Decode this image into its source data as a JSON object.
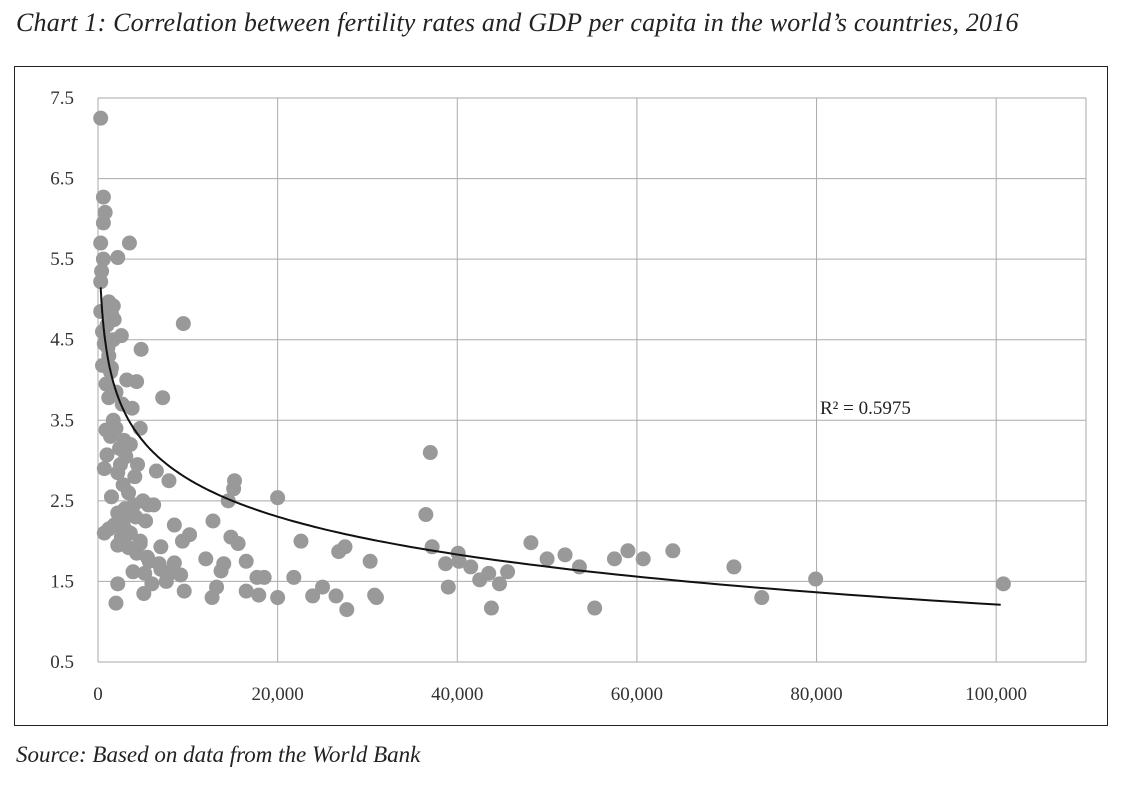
{
  "title": "Chart 1: Correlation between fertility rates and GDP per capita in the world’s countries, 2016",
  "source": "Source: Based on data from the World Bank",
  "colors": {
    "point": "#999999",
    "trend": "#111111",
    "grid": "#aaaaaa"
  },
  "chart_data": {
    "type": "scatter",
    "title": "Chart 1: Correlation between fertility rates and GDP per capita in the world’s countries, 2016",
    "xlabel": "",
    "ylabel": "",
    "xlim": [
      0,
      110000
    ],
    "ylim": [
      0.5,
      7.5
    ],
    "xticks": [
      0,
      20000,
      40000,
      60000,
      80000,
      100000
    ],
    "xtick_labels": [
      "0",
      "20,000",
      "40,000",
      "60,000",
      "80,000",
      "100,000"
    ],
    "yticks": [
      0.5,
      1.5,
      2.5,
      3.5,
      4.5,
      5.5,
      6.5,
      7.5
    ],
    "ytick_labels": [
      "0.5",
      "1.5",
      "2.5",
      "3.5",
      "4.5",
      "5.5",
      "6.5",
      "7.5"
    ],
    "grid": true,
    "trendline": {
      "type": "logarithmic",
      "annotation": "R² = 0.5975",
      "x_range": [
        300,
        100500
      ],
      "y_at_start": 5.15,
      "y_at_end": 1.21
    },
    "points": [
      [
        300,
        7.25
      ],
      [
        600,
        6.27
      ],
      [
        800,
        6.08
      ],
      [
        600,
        5.95
      ],
      [
        300,
        5.7
      ],
      [
        3500,
        5.7
      ],
      [
        2200,
        5.52
      ],
      [
        600,
        5.5
      ],
      [
        400,
        5.35
      ],
      [
        300,
        5.22
      ],
      [
        1200,
        4.97
      ],
      [
        1700,
        4.92
      ],
      [
        300,
        4.85
      ],
      [
        1500,
        4.82
      ],
      [
        1800,
        4.75
      ],
      [
        1000,
        4.68
      ],
      [
        9500,
        4.7
      ],
      [
        500,
        4.6
      ],
      [
        2600,
        4.55
      ],
      [
        1700,
        4.5
      ],
      [
        700,
        4.45
      ],
      [
        4800,
        4.38
      ],
      [
        1200,
        4.3
      ],
      [
        500,
        4.18
      ],
      [
        1400,
        4.1
      ],
      [
        3200,
        4.0
      ],
      [
        4300,
        3.98
      ],
      [
        900,
        3.95
      ],
      [
        2000,
        3.85
      ],
      [
        1200,
        3.78
      ],
      [
        7200,
        3.78
      ],
      [
        2700,
        3.7
      ],
      [
        3800,
        3.65
      ],
      [
        1700,
        3.5
      ],
      [
        900,
        3.38
      ],
      [
        4700,
        3.4
      ],
      [
        2900,
        3.25
      ],
      [
        3600,
        3.2
      ],
      [
        2400,
        3.15
      ],
      [
        1000,
        3.07
      ],
      [
        3100,
        3.05
      ],
      [
        4400,
        2.95
      ],
      [
        700,
        2.9
      ],
      [
        6500,
        2.87
      ],
      [
        2200,
        2.85
      ],
      [
        4100,
        2.8
      ],
      [
        7900,
        2.75
      ],
      [
        2800,
        2.7
      ],
      [
        15200,
        2.75
      ],
      [
        15100,
        2.65
      ],
      [
        1500,
        2.55
      ],
      [
        20000,
        2.54
      ],
      [
        14500,
        2.5
      ],
      [
        5000,
        2.5
      ],
      [
        6200,
        2.45
      ],
      [
        3000,
        2.4
      ],
      [
        5600,
        2.45
      ],
      [
        2200,
        2.35
      ],
      [
        4200,
        2.3
      ],
      [
        5300,
        2.25
      ],
      [
        12800,
        2.25
      ],
      [
        8500,
        2.2
      ],
      [
        1200,
        2.15
      ],
      [
        700,
        2.1
      ],
      [
        3600,
        2.1
      ],
      [
        10200,
        2.08
      ],
      [
        14800,
        2.05
      ],
      [
        9400,
        2.0
      ],
      [
        15600,
        1.97
      ],
      [
        22600,
        2.0
      ],
      [
        4700,
        1.97
      ],
      [
        2200,
        1.95
      ],
      [
        7000,
        1.93
      ],
      [
        27500,
        1.93
      ],
      [
        37200,
        1.93
      ],
      [
        48200,
        1.98
      ],
      [
        59000,
        1.88
      ],
      [
        64000,
        1.88
      ],
      [
        40100,
        1.85
      ],
      [
        26800,
        1.87
      ],
      [
        4300,
        1.85
      ],
      [
        52000,
        1.83
      ],
      [
        12000,
        1.78
      ],
      [
        57500,
        1.78
      ],
      [
        60700,
        1.78
      ],
      [
        50000,
        1.78
      ],
      [
        5700,
        1.75
      ],
      [
        16500,
        1.75
      ],
      [
        40200,
        1.75
      ],
      [
        8500,
        1.73
      ],
      [
        14000,
        1.72
      ],
      [
        30300,
        1.75
      ],
      [
        38700,
        1.72
      ],
      [
        41500,
        1.68
      ],
      [
        53600,
        1.68
      ],
      [
        70800,
        1.68
      ],
      [
        7000,
        1.65
      ],
      [
        45600,
        1.62
      ],
      [
        3900,
        1.62
      ],
      [
        5200,
        1.6
      ],
      [
        43500,
        1.6
      ],
      [
        9200,
        1.58
      ],
      [
        13700,
        1.63
      ],
      [
        17700,
        1.55
      ],
      [
        18500,
        1.55
      ],
      [
        21800,
        1.55
      ],
      [
        42500,
        1.52
      ],
      [
        79900,
        1.53
      ],
      [
        100800,
        1.47
      ],
      [
        7600,
        1.5
      ],
      [
        6000,
        1.47
      ],
      [
        2200,
        1.47
      ],
      [
        44700,
        1.47
      ],
      [
        39000,
        1.43
      ],
      [
        25000,
        1.43
      ],
      [
        13200,
        1.43
      ],
      [
        9600,
        1.38
      ],
      [
        5100,
        1.35
      ],
      [
        16500,
        1.38
      ],
      [
        23900,
        1.32
      ],
      [
        26500,
        1.32
      ],
      [
        30800,
        1.33
      ],
      [
        12700,
        1.3
      ],
      [
        17900,
        1.33
      ],
      [
        20000,
        1.3
      ],
      [
        73900,
        1.3
      ],
      [
        31000,
        1.3
      ],
      [
        2000,
        1.23
      ],
      [
        27700,
        1.15
      ],
      [
        43800,
        1.17
      ],
      [
        55300,
        1.17
      ],
      [
        36500,
        2.33
      ],
      [
        37000,
        3.1
      ],
      [
        1800,
        2.2
      ],
      [
        3000,
        2.15
      ],
      [
        2600,
        2.05
      ],
      [
        4700,
        2.0
      ],
      [
        3400,
        1.92
      ],
      [
        2800,
        2.25
      ],
      [
        5500,
        1.8
      ],
      [
        6800,
        1.72
      ],
      [
        8000,
        1.6
      ],
      [
        1400,
        3.3
      ],
      [
        2000,
        3.4
      ],
      [
        3400,
        2.6
      ],
      [
        4000,
        2.45
      ],
      [
        2500,
        2.95
      ],
      [
        1100,
        4.4
      ],
      [
        1500,
        4.15
      ]
    ]
  }
}
